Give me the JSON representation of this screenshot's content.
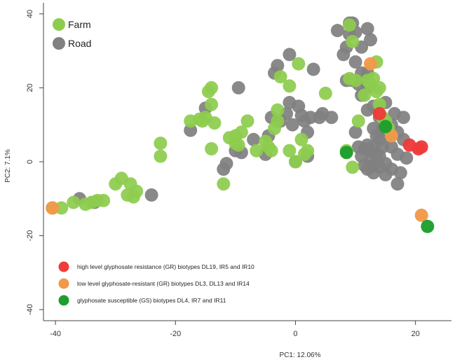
{
  "chart_data": {
    "type": "scatter",
    "xlabel": "PC1: 12.06%",
    "ylabel": "PC2: 7.1%",
    "xlim": [
      -42,
      26
    ],
    "ylim": [
      -43,
      43
    ],
    "xticks": [
      -40,
      -20,
      0,
      20
    ],
    "yticks": [
      -40,
      -20,
      0,
      20,
      40
    ],
    "grid": false,
    "legend_main": {
      "placement": "top-left",
      "entries": [
        {
          "label": "Farm",
          "color": "#8dcc4e"
        },
        {
          "label": "Road",
          "color": "#808080"
        }
      ]
    },
    "legend_biotypes": {
      "placement": "bottom-left",
      "entries": [
        {
          "label": "high level glyphosate resistance (GR) biotypes DL19, IR5 and IR10",
          "color": "#ee3b3b"
        },
        {
          "label": "low level glyphosate-resistant (GR) biotypes DL3, DL13 and IR14",
          "color": "#f2994a"
        },
        {
          "label": "glyphosate susceptible (GS) biotypes DL4, IR7 and IR11",
          "color": "#1e9e2e"
        }
      ]
    },
    "series": [
      {
        "name": "Road",
        "color": "#808080",
        "points": [
          [
            -40.5,
            -12.5
          ],
          [
            -36,
            -10
          ],
          [
            -33.5,
            -11
          ],
          [
            -24,
            -9
          ],
          [
            -17.5,
            8.5
          ],
          [
            -15,
            14.5
          ],
          [
            -12,
            -2
          ],
          [
            -11.5,
            -0.5
          ],
          [
            -10,
            3
          ],
          [
            -9,
            2.5
          ],
          [
            -9.5,
            20
          ],
          [
            -7,
            6
          ],
          [
            -5,
            2
          ],
          [
            -4.5,
            7
          ],
          [
            -4,
            12
          ],
          [
            -3.5,
            24
          ],
          [
            -3,
            26
          ],
          [
            -2.5,
            11
          ],
          [
            -1.5,
            13
          ],
          [
            -1,
            29
          ],
          [
            -1,
            16
          ],
          [
            -0.5,
            10
          ],
          [
            0,
            0
          ],
          [
            0.5,
            15
          ],
          [
            1,
            12.5
          ],
          [
            1.5,
            11
          ],
          [
            2,
            8
          ],
          [
            2,
            1.5
          ],
          [
            2.5,
            12
          ],
          [
            3,
            25
          ],
          [
            4,
            12
          ],
          [
            4.5,
            13
          ],
          [
            6,
            12
          ],
          [
            7,
            35.5
          ],
          [
            8,
            29
          ],
          [
            8.5,
            31
          ],
          [
            8.5,
            22
          ],
          [
            9,
            37.5
          ],
          [
            9,
            34.5
          ],
          [
            9.5,
            37.5
          ],
          [
            9.5,
            22
          ],
          [
            10,
            35
          ],
          [
            10,
            27
          ],
          [
            10,
            8
          ],
          [
            10.5,
            21
          ],
          [
            10.5,
            4
          ],
          [
            11,
            31
          ],
          [
            11,
            24
          ],
          [
            11,
            18
          ],
          [
            11,
            1.5
          ],
          [
            11.5,
            3.5
          ],
          [
            11.5,
            -1
          ],
          [
            12,
            36
          ],
          [
            12,
            24
          ],
          [
            12,
            20
          ],
          [
            12,
            14
          ],
          [
            12,
            4.5
          ],
          [
            12,
            -2
          ],
          [
            12.5,
            33
          ],
          [
            12.5,
            3
          ],
          [
            12.5,
            0.5
          ],
          [
            13,
            15
          ],
          [
            13,
            9
          ],
          [
            13,
            4
          ],
          [
            13,
            -1
          ],
          [
            13,
            -3
          ],
          [
            13.5,
            7
          ],
          [
            13.5,
            2
          ],
          [
            14,
            12
          ],
          [
            14,
            6
          ],
          [
            14,
            1.5
          ],
          [
            14,
            -1.5
          ],
          [
            14.5,
            9
          ],
          [
            14.5,
            4
          ],
          [
            15,
            16
          ],
          [
            15,
            11
          ],
          [
            15,
            -0.5
          ],
          [
            15,
            -3.5
          ],
          [
            15.5,
            7
          ],
          [
            16,
            10
          ],
          [
            16,
            4
          ],
          [
            16,
            -2
          ],
          [
            16.5,
            13
          ],
          [
            17,
            8
          ],
          [
            17,
            2
          ],
          [
            17,
            -6
          ],
          [
            17.5,
            -3
          ],
          [
            18,
            12
          ],
          [
            18,
            6
          ],
          [
            18.5,
            1
          ]
        ]
      },
      {
        "name": "Farm",
        "color": "#8dcc4e",
        "points": [
          [
            -40.5,
            -12.5
          ],
          [
            -39,
            -12.5
          ],
          [
            -37,
            -11
          ],
          [
            -35,
            -11.5
          ],
          [
            -34,
            -11
          ],
          [
            -33,
            -10.5
          ],
          [
            -32,
            -10.5
          ],
          [
            -30,
            -6
          ],
          [
            -29,
            -4.5
          ],
          [
            -28,
            -9
          ],
          [
            -27.5,
            -6
          ],
          [
            -27,
            -9.5
          ],
          [
            -26.5,
            -8
          ],
          [
            -22.5,
            1.5
          ],
          [
            -22.5,
            5
          ],
          [
            -17.5,
            11
          ],
          [
            -16,
            11.5
          ],
          [
            -15.5,
            11
          ],
          [
            -15,
            12
          ],
          [
            -14.5,
            19
          ],
          [
            -14,
            20
          ],
          [
            -14,
            15.5
          ],
          [
            -13.5,
            10.5
          ],
          [
            -14,
            3.5
          ],
          [
            -12,
            -6
          ],
          [
            -11,
            6.5
          ],
          [
            -10,
            7
          ],
          [
            -10,
            5
          ],
          [
            -9.5,
            4.5
          ],
          [
            -9,
            8
          ],
          [
            -8,
            11
          ],
          [
            -6.5,
            3
          ],
          [
            -5,
            5.5
          ],
          [
            -4.5,
            4
          ],
          [
            -4,
            3
          ],
          [
            -3.5,
            9
          ],
          [
            -3,
            11
          ],
          [
            -3,
            14
          ],
          [
            -2.5,
            23
          ],
          [
            -1,
            20.5
          ],
          [
            -1,
            3
          ],
          [
            0,
            0
          ],
          [
            0.5,
            26.5
          ],
          [
            1,
            6
          ],
          [
            1.5,
            2
          ],
          [
            2,
            3
          ],
          [
            5,
            18.5
          ],
          [
            8.5,
            3
          ],
          [
            9.5,
            -1.5
          ],
          [
            9,
            37
          ],
          [
            9.5,
            32.5
          ],
          [
            9,
            22.5
          ],
          [
            10,
            22
          ],
          [
            10.5,
            11
          ],
          [
            11.5,
            18
          ],
          [
            12,
            22
          ],
          [
            12.5,
            21
          ],
          [
            13,
            22.5
          ],
          [
            13.5,
            27
          ],
          [
            13.5,
            19
          ],
          [
            14,
            20
          ],
          [
            14,
            15.5
          ],
          [
            14.5,
            12
          ],
          [
            15,
            11
          ],
          [
            15.5,
            9
          ]
        ]
      },
      {
        "name": "high level glyphosate resistance (GR) biotypes DL19, IR5 and IR10",
        "color": "#ee3b3b",
        "points": [
          [
            14,
            13
          ],
          [
            19,
            4.5
          ],
          [
            20.5,
            3.5
          ],
          [
            21,
            4
          ]
        ]
      },
      {
        "name": "low level glyphosate-resistant (GR) biotypes DL3, DL13 and IR14",
        "color": "#f2994a",
        "points": [
          [
            -40.5,
            -12.5
          ],
          [
            12.5,
            26.5
          ],
          [
            16,
            7
          ],
          [
            21,
            -14.5
          ]
        ]
      },
      {
        "name": "glyphosate susceptible (GS) biotypes DL4, IR7 and IR11",
        "color": "#1e9e2e",
        "points": [
          [
            8.5,
            2.5
          ],
          [
            15,
            9.5
          ],
          [
            22,
            -17.5
          ]
        ]
      }
    ]
  }
}
